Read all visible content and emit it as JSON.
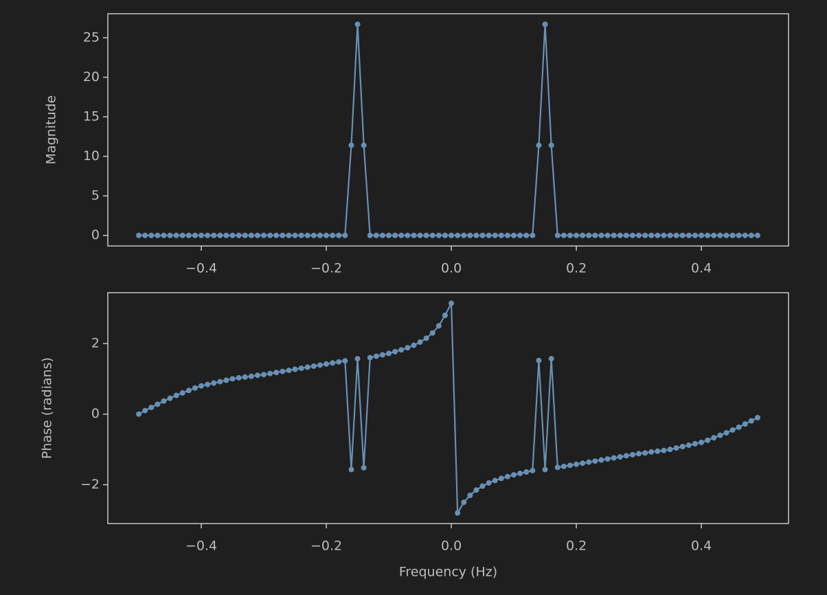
{
  "chart_data": [
    {
      "type": "line",
      "ylabel": "Magnitude",
      "color": "#6890b5",
      "x": [
        -0.5,
        -0.49,
        -0.48,
        -0.47,
        -0.46,
        -0.45,
        -0.44,
        -0.43,
        -0.42,
        -0.41,
        -0.4,
        -0.39,
        -0.38,
        -0.37,
        -0.36,
        -0.35,
        -0.34,
        -0.33,
        -0.32,
        -0.31,
        -0.3,
        -0.29,
        -0.28,
        -0.27,
        -0.26,
        -0.25,
        -0.24,
        -0.23,
        -0.22,
        -0.21,
        -0.2,
        -0.19,
        -0.18,
        -0.17,
        -0.16,
        -0.15,
        -0.14,
        -0.13,
        -0.12,
        -0.11,
        -0.1,
        -0.09,
        -0.08,
        -0.07,
        -0.06,
        -0.05,
        -0.04,
        -0.03,
        -0.02,
        -0.01,
        0,
        0.01,
        0.02,
        0.03,
        0.04,
        0.05,
        0.06,
        0.07,
        0.08,
        0.09,
        0.1,
        0.11,
        0.12,
        0.13,
        0.14,
        0.15,
        0.16,
        0.17,
        0.18,
        0.19,
        0.2,
        0.21,
        0.22,
        0.23,
        0.24,
        0.25,
        0.26,
        0.27,
        0.28,
        0.29,
        0.3,
        0.31,
        0.32,
        0.33,
        0.34,
        0.35,
        0.36,
        0.37,
        0.38,
        0.39,
        0.4,
        0.41,
        0.42,
        0.43,
        0.44,
        0.45,
        0.46,
        0.47,
        0.48,
        0.49
      ],
      "values": [
        0,
        0,
        0,
        0,
        0,
        0,
        0,
        0,
        0,
        0,
        0,
        0,
        0,
        0,
        0,
        0,
        0,
        0,
        0,
        0,
        0,
        0,
        0,
        0,
        0,
        0,
        0,
        0,
        0,
        0,
        0,
        0,
        0,
        0,
        11.4,
        26.7,
        11.4,
        0,
        0,
        0,
        0,
        0,
        0,
        0,
        0,
        0,
        0,
        0,
        0,
        0,
        0,
        0,
        0,
        0,
        0,
        0,
        0,
        0,
        0,
        0,
        0,
        0,
        0,
        0,
        11.4,
        26.7,
        11.4,
        0,
        0,
        0,
        0,
        0,
        0,
        0,
        0,
        0,
        0,
        0,
        0,
        0,
        0,
        0,
        0,
        0,
        0,
        0,
        0,
        0,
        0,
        0,
        0,
        0,
        0,
        0,
        0,
        0,
        0,
        0,
        0,
        0
      ],
      "xlim": [
        -0.5495,
        0.5395
      ],
      "ylim": [
        -1.335,
        28.035
      ],
      "xticks": [
        {
          "value": -0.4,
          "label": "−0.4"
        },
        {
          "value": -0.2,
          "label": "−0.2"
        },
        {
          "value": 0,
          "label": "0.0"
        },
        {
          "value": 0.2,
          "label": "0.2"
        },
        {
          "value": 0.4,
          "label": "0.4"
        }
      ],
      "yticks": [
        0,
        5,
        10,
        15,
        20,
        25
      ]
    },
    {
      "type": "line",
      "ylabel": "Phase (radians)",
      "xlabel": "Frequency (Hz)",
      "color": "#6890b5",
      "x": [
        -0.5,
        -0.49,
        -0.48,
        -0.47,
        -0.46,
        -0.45,
        -0.44,
        -0.43,
        -0.42,
        -0.41,
        -0.4,
        -0.39,
        -0.38,
        -0.37,
        -0.36,
        -0.35,
        -0.34,
        -0.33,
        -0.32,
        -0.31,
        -0.3,
        -0.29,
        -0.28,
        -0.27,
        -0.26,
        -0.25,
        -0.24,
        -0.23,
        -0.22,
        -0.21,
        -0.2,
        -0.19,
        -0.18,
        -0.17,
        -0.16,
        -0.15,
        -0.14,
        -0.13,
        -0.12,
        -0.11,
        -0.1,
        -0.09,
        -0.08,
        -0.07,
        -0.06,
        -0.05,
        -0.04,
        -0.03,
        -0.02,
        -0.01,
        0,
        0.01,
        0.02,
        0.03,
        0.04,
        0.05,
        0.06,
        0.07,
        0.08,
        0.09,
        0.1,
        0.11,
        0.12,
        0.13,
        0.14,
        0.15,
        0.16,
        0.17,
        0.18,
        0.19,
        0.2,
        0.21,
        0.22,
        0.23,
        0.24,
        0.25,
        0.26,
        0.27,
        0.28,
        0.29,
        0.3,
        0.31,
        0.32,
        0.33,
        0.34,
        0.35,
        0.36,
        0.37,
        0.38,
        0.39,
        0.4,
        0.41,
        0.42,
        0.43,
        0.44,
        0.45,
        0.46,
        0.47,
        0.48,
        0.49
      ],
      "values": [
        0,
        0.1,
        0.19,
        0.28,
        0.37,
        0.45,
        0.53,
        0.6,
        0.67,
        0.74,
        0.8,
        0.84,
        0.88,
        0.92,
        0.96,
        1.0,
        1.03,
        1.05,
        1.07,
        1.1,
        1.12,
        1.15,
        1.18,
        1.21,
        1.24,
        1.27,
        1.3,
        1.33,
        1.36,
        1.39,
        1.42,
        1.45,
        1.48,
        1.51,
        -1.57,
        1.57,
        -1.52,
        1.6,
        1.64,
        1.68,
        1.72,
        1.77,
        1.82,
        1.88,
        1.95,
        2.04,
        2.15,
        2.3,
        2.5,
        2.8,
        3.14,
        -2.8,
        -2.5,
        -2.3,
        -2.15,
        -2.04,
        -1.95,
        -1.88,
        -1.82,
        -1.77,
        -1.72,
        -1.68,
        -1.64,
        -1.6,
        1.52,
        -1.57,
        1.57,
        -1.51,
        -1.48,
        -1.45,
        -1.42,
        -1.39,
        -1.36,
        -1.33,
        -1.3,
        -1.27,
        -1.24,
        -1.21,
        -1.18,
        -1.15,
        -1.12,
        -1.1,
        -1.07,
        -1.05,
        -1.03,
        -1.0,
        -0.96,
        -0.92,
        -0.88,
        -0.84,
        -0.8,
        -0.74,
        -0.67,
        -0.6,
        -0.53,
        -0.45,
        -0.37,
        -0.28,
        -0.19,
        -0.1
      ],
      "xlim": [
        -0.5495,
        0.5395
      ],
      "ylim": [
        -3.1,
        3.44
      ],
      "xticks": [
        {
          "value": -0.4,
          "label": "−0.4"
        },
        {
          "value": -0.2,
          "label": "−0.2"
        },
        {
          "value": 0,
          "label": "0.0"
        },
        {
          "value": 0.2,
          "label": "0.2"
        },
        {
          "value": 0.4,
          "label": "0.4"
        }
      ],
      "yticks": [
        {
          "value": -2,
          "label": "−2"
        },
        0,
        2
      ]
    }
  ]
}
